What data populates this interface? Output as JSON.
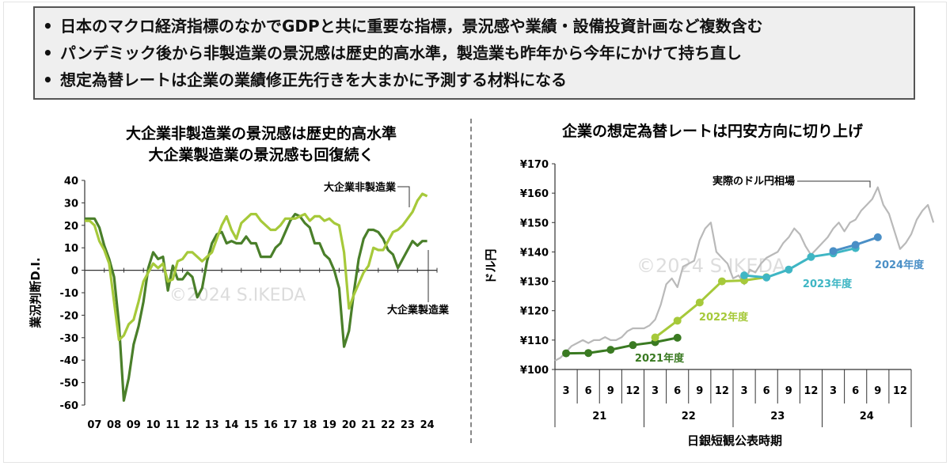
{
  "summary": {
    "bullets": [
      "日本のマクロ経済指標のなかでGDPと共に重要な指標，景況感や業績・設備投資計画など複数含む",
      "パンデミック後から非製造業の景況感は歴史的高水準，製造業も昨年から今年にかけて持ち直し",
      "想定為替レートは企業の業績修正先行きを大まかに予測する材料になる"
    ]
  },
  "chart_data": [
    {
      "type": "line",
      "title_lines": [
        "大企業非製造業の景況感は歴史的高水準",
        "大企業製造業の景況感も回復続く"
      ],
      "ylabel": "業況判断D.I.",
      "xlabel": "",
      "ylim": [
        -60,
        40
      ],
      "yticks": [
        "40",
        "30",
        "20",
        "10",
        "0",
        "-10",
        "-20",
        "-30",
        "-40",
        "-50",
        "-60"
      ],
      "xticks": [
        "07",
        "08",
        "09",
        "10",
        "11",
        "12",
        "13",
        "14",
        "15",
        "16",
        "17",
        "18",
        "19",
        "20",
        "21",
        "22",
        "23",
        "24"
      ],
      "watermark": "©2024 S.IKEDA",
      "grid": false,
      "series": [
        {
          "name": "大企業非製造業",
          "color": "#a6c93a",
          "x": [
            2007.0,
            2007.25,
            2007.5,
            2007.75,
            2008.0,
            2008.25,
            2008.5,
            2008.75,
            2009.0,
            2009.25,
            2009.5,
            2009.75,
            2010.0,
            2010.25,
            2010.5,
            2010.75,
            2011.0,
            2011.25,
            2011.5,
            2011.75,
            2012.0,
            2012.25,
            2012.5,
            2012.75,
            2013.0,
            2013.25,
            2013.5,
            2013.75,
            2014.0,
            2014.25,
            2014.5,
            2014.75,
            2015.0,
            2015.25,
            2015.5,
            2015.75,
            2016.0,
            2016.25,
            2016.5,
            2016.75,
            2017.0,
            2017.25,
            2017.5,
            2017.75,
            2018.0,
            2018.25,
            2018.5,
            2018.75,
            2019.0,
            2019.25,
            2019.5,
            2019.75,
            2020.0,
            2020.25,
            2020.5,
            2020.75,
            2021.0,
            2021.25,
            2021.5,
            2021.75,
            2022.0,
            2022.25,
            2022.5,
            2022.75,
            2023.0,
            2023.25,
            2023.5,
            2023.75,
            2024.0,
            2024.25,
            2024.5
          ],
          "values": [
            22,
            22,
            20,
            13,
            9,
            3,
            -14,
            -31,
            -29,
            -24,
            -22,
            -14,
            -5,
            -1,
            3,
            1,
            3,
            -5,
            -4,
            4,
            5,
            8,
            8,
            6,
            4,
            6,
            8,
            14,
            20,
            24,
            18,
            14,
            21,
            23,
            25,
            25,
            22,
            20,
            18,
            18,
            20,
            23,
            23,
            23,
            24,
            25,
            22,
            24,
            24,
            22,
            23,
            21,
            20,
            8,
            -17,
            -11,
            -6,
            -1,
            2,
            10,
            9,
            9,
            13,
            17,
            18,
            20,
            23,
            26,
            31,
            34,
            33
          ]
        },
        {
          "name": "大企業製造業",
          "color": "#4a7f2a",
          "x": [
            2007.0,
            2007.25,
            2007.5,
            2007.75,
            2008.0,
            2008.25,
            2008.5,
            2008.75,
            2009.0,
            2009.25,
            2009.5,
            2009.75,
            2010.0,
            2010.25,
            2010.5,
            2010.75,
            2011.0,
            2011.25,
            2011.5,
            2011.75,
            2012.0,
            2012.25,
            2012.5,
            2012.75,
            2013.0,
            2013.25,
            2013.5,
            2013.75,
            2014.0,
            2014.25,
            2014.5,
            2014.75,
            2015.0,
            2015.25,
            2015.5,
            2015.75,
            2016.0,
            2016.25,
            2016.5,
            2016.75,
            2017.0,
            2017.25,
            2017.5,
            2017.75,
            2018.0,
            2018.25,
            2018.5,
            2018.75,
            2019.0,
            2019.25,
            2019.5,
            2019.75,
            2020.0,
            2020.25,
            2020.5,
            2020.75,
            2021.0,
            2021.25,
            2021.5,
            2021.75,
            2022.0,
            2022.25,
            2022.5,
            2022.75,
            2023.0,
            2023.25,
            2023.5,
            2023.75,
            2024.0,
            2024.25,
            2024.5
          ],
          "values": [
            23,
            23,
            23,
            19,
            11,
            5,
            -3,
            -24,
            -58,
            -48,
            -33,
            -25,
            -14,
            1,
            8,
            5,
            6,
            -9,
            2,
            -4,
            -4,
            -1,
            -3,
            -12,
            -8,
            4,
            12,
            16,
            17,
            12,
            13,
            12,
            12,
            15,
            12,
            12,
            6,
            6,
            6,
            10,
            12,
            17,
            22,
            25,
            24,
            21,
            19,
            12,
            12,
            7,
            5,
            0,
            -8,
            -34,
            -27,
            -10,
            5,
            14,
            18,
            18,
            17,
            14,
            9,
            7,
            1,
            5,
            9,
            13,
            11,
            13,
            13
          ]
        }
      ]
    },
    {
      "type": "line",
      "title": "企業の想定為替レートは円安方向に切り上げ",
      "xlabel": "日銀短観公表時期",
      "ylabel": "ドル円",
      "ylim": [
        100,
        170
      ],
      "yticks": [
        "¥170",
        "¥160",
        "¥150",
        "¥140",
        "¥130",
        "¥120",
        "¥110",
        "¥100"
      ],
      "quarter_ticks": [
        "3",
        "6",
        "9",
        "12",
        "3",
        "6",
        "9",
        "12",
        "3",
        "6",
        "9",
        "12",
        "3",
        "6",
        "9",
        "12"
      ],
      "year_labels": [
        "21",
        "22",
        "23",
        "24"
      ],
      "watermark": "©2024 S.IKEDA",
      "series": [
        {
          "name": "実際のドル円相場",
          "color": "#b9b9b9",
          "x": [
            0.0,
            0.25,
            0.5,
            0.75,
            1.0,
            1.25,
            1.5,
            1.75,
            2.0,
            2.25,
            2.5,
            2.75,
            3.0,
            3.25,
            3.5,
            3.75,
            4.0,
            4.25,
            4.5,
            4.75,
            5.0,
            5.25,
            5.5,
            5.75,
            6.0,
            6.25,
            6.5,
            6.75,
            7.0,
            7.25,
            7.5,
            7.75,
            8.0,
            8.25,
            8.5,
            8.75,
            9.0,
            9.25,
            9.5,
            9.75,
            10.0,
            10.25,
            10.5,
            10.75,
            11.0,
            11.25,
            11.5,
            11.75,
            12.0,
            12.25,
            12.5,
            12.75,
            13.0,
            13.25,
            13.5,
            13.75,
            14.0,
            14.25,
            14.5,
            14.75,
            15.0,
            15.25,
            15.5,
            15.75,
            16.0,
            16.25,
            16.5,
            16.75,
            17.0
          ],
          "values": [
            103,
            104,
            106,
            108,
            109,
            110,
            109,
            110,
            110,
            111,
            110,
            110,
            111,
            113,
            114,
            114,
            114,
            115,
            117,
            122,
            129,
            131,
            128,
            135,
            136,
            137,
            144,
            148,
            150,
            140,
            138,
            136,
            131,
            132,
            129,
            134,
            133,
            136,
            138,
            139,
            140,
            143,
            145,
            148,
            146,
            142,
            139,
            141,
            143,
            145,
            148,
            150,
            147,
            150,
            151,
            154,
            156,
            158,
            162,
            156,
            153,
            147,
            141,
            143,
            146,
            151,
            154,
            156,
            150
          ]
        },
        {
          "name": "2021年度",
          "color": "#3a7a22",
          "x": [
            0.5,
            1.5,
            2.5,
            3.5,
            4.5,
            5.5
          ],
          "values": [
            105.5,
            105.6,
            106.7,
            108.3,
            109.3,
            110.8
          ]
        },
        {
          "name": "2022年度",
          "color": "#a6c93a",
          "x": [
            4.5,
            5.5,
            6.5,
            7.5,
            8.5,
            9.5
          ],
          "values": [
            110.9,
            116.6,
            122.8,
            130.0,
            130.3,
            131.4
          ]
        },
        {
          "name": "2023年度",
          "color": "#3fb6c4",
          "x": [
            8.5,
            9.5,
            10.5,
            11.5,
            12.5,
            13.5
          ],
          "values": [
            132.0,
            131.3,
            134.0,
            138.3,
            139.5,
            141.3
          ]
        },
        {
          "name": "2024年度",
          "color": "#4a8fc6",
          "x": [
            12.5,
            13.5,
            14.5
          ],
          "values": [
            140.3,
            142.4,
            145.0
          ]
        }
      ]
    }
  ]
}
